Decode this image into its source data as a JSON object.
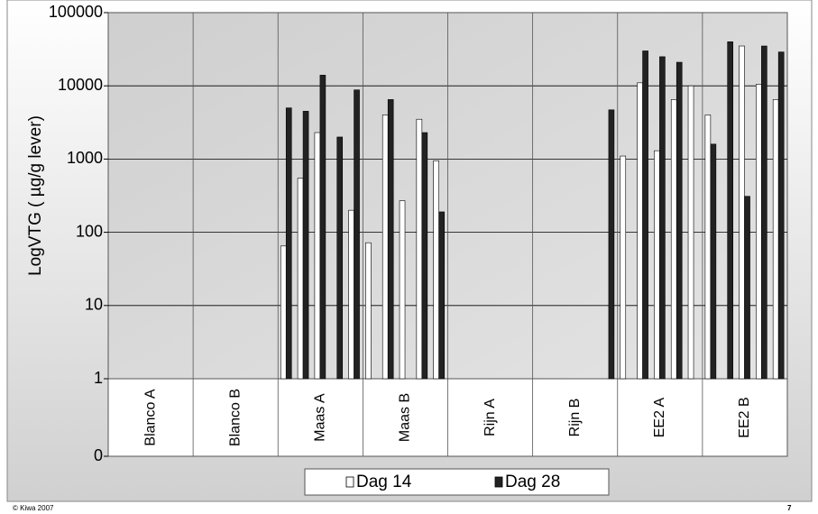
{
  "chart_data": {
    "type": "bar",
    "categories": [
      "Blanco A",
      "Blanco B",
      "Maas A",
      "Maas B",
      "Rijn A",
      "Rijn B",
      "EE2 A",
      "EE2 B"
    ],
    "y_label": "LogVTG (  µg/g lever)",
    "log_scale": true,
    "ylim": [
      1,
      100000
    ],
    "yticks": [
      0,
      1,
      10,
      100,
      1000,
      10000,
      100000
    ],
    "grid": true,
    "series": [
      {
        "name": "Dag 14",
        "color": "#ffffff",
        "values": [
          [
            null,
            null,
            null,
            null,
            null
          ],
          [
            null,
            null,
            null,
            null,
            null
          ],
          [
            65,
            550,
            2300,
            null,
            200
          ],
          [
            72,
            4000,
            270,
            3500,
            950
          ],
          [
            null,
            null,
            null,
            null,
            null
          ],
          [
            null,
            null,
            null,
            null,
            null
          ],
          [
            1100,
            11000,
            1300,
            6500,
            10000
          ],
          [
            4000,
            null,
            35000,
            10500,
            6500
          ]
        ]
      },
      {
        "name": "Dag 28",
        "color": "#222222",
        "values": [
          [
            null,
            null,
            null,
            null,
            null
          ],
          [
            null,
            null,
            null,
            null,
            null
          ],
          [
            5000,
            4500,
            14000,
            2000,
            8800
          ],
          [
            null,
            6500,
            null,
            2300,
            190
          ],
          [
            null,
            null,
            null,
            null,
            null
          ],
          [
            null,
            null,
            null,
            null,
            4700
          ],
          [
            null,
            30000,
            25000,
            21000,
            null
          ],
          [
            1600,
            40000,
            310,
            35000,
            29000
          ]
        ]
      }
    ]
  },
  "footer": {
    "left": "© Kiwa 2007",
    "right": "7"
  }
}
